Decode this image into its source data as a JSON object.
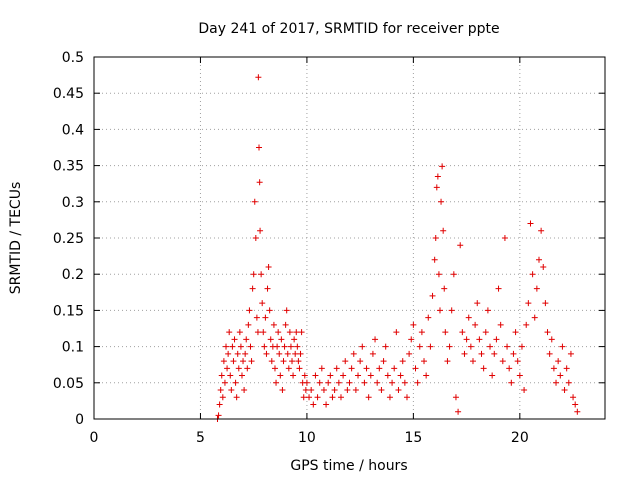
{
  "chart_data": {
    "type": "scatter",
    "title": "Day 241 of 2017, SRMTID for receiver ppte",
    "xlabel": "GPS time / hours",
    "ylabel": "SRMTID / TECUs",
    "xlim": [
      0,
      24
    ],
    "ylim": [
      0,
      0.5
    ],
    "xticks": [
      0,
      5,
      10,
      15,
      20
    ],
    "xtick_labels": [
      "0",
      "5",
      "10",
      "15",
      "20"
    ],
    "yticks": [
      0,
      0.05,
      0.1,
      0.15,
      0.2,
      0.25,
      0.3,
      0.35,
      0.4,
      0.45,
      0.5
    ],
    "ytick_labels": [
      "0",
      "0.05",
      "0.1",
      "0.15",
      "0.2",
      "0.25",
      "0.3",
      "0.35",
      "0.4",
      "0.45",
      "0.5"
    ],
    "grid": true,
    "marker": "+",
    "color": "#e00000",
    "series": [
      {
        "name": "SRMTID",
        "points": [
          [
            5.8,
            0.0
          ],
          [
            5.85,
            0.005
          ],
          [
            5.9,
            0.02
          ],
          [
            5.95,
            0.04
          ],
          [
            6.0,
            0.06
          ],
          [
            6.05,
            0.03
          ],
          [
            6.1,
            0.08
          ],
          [
            6.15,
            0.05
          ],
          [
            6.2,
            0.1
          ],
          [
            6.25,
            0.07
          ],
          [
            6.3,
            0.09
          ],
          [
            6.35,
            0.12
          ],
          [
            6.4,
            0.06
          ],
          [
            6.45,
            0.04
          ],
          [
            6.5,
            0.1
          ],
          [
            6.55,
            0.08
          ],
          [
            6.6,
            0.11
          ],
          [
            6.65,
            0.05
          ],
          [
            6.7,
            0.03
          ],
          [
            6.75,
            0.09
          ],
          [
            6.8,
            0.07
          ],
          [
            6.85,
            0.12
          ],
          [
            6.9,
            0.1
          ],
          [
            6.95,
            0.06
          ],
          [
            7.0,
            0.08
          ],
          [
            7.05,
            0.04
          ],
          [
            7.1,
            0.09
          ],
          [
            7.15,
            0.11
          ],
          [
            7.2,
            0.07
          ],
          [
            7.25,
            0.13
          ],
          [
            7.3,
            0.15
          ],
          [
            7.35,
            0.1
          ],
          [
            7.4,
            0.08
          ],
          [
            7.45,
            0.18
          ],
          [
            7.5,
            0.2
          ],
          [
            7.55,
            0.3
          ],
          [
            7.6,
            0.25
          ],
          [
            7.65,
            0.14
          ],
          [
            7.7,
            0.12
          ],
          [
            7.72,
            0.472
          ],
          [
            7.75,
            0.375
          ],
          [
            7.78,
            0.327
          ],
          [
            7.8,
            0.26
          ],
          [
            7.85,
            0.2
          ],
          [
            7.9,
            0.16
          ],
          [
            7.95,
            0.12
          ],
          [
            8.0,
            0.1
          ],
          [
            8.05,
            0.14
          ],
          [
            8.1,
            0.09
          ],
          [
            8.15,
            0.18
          ],
          [
            8.2,
            0.21
          ],
          [
            8.25,
            0.15
          ],
          [
            8.3,
            0.11
          ],
          [
            8.35,
            0.08
          ],
          [
            8.4,
            0.1
          ],
          [
            8.45,
            0.13
          ],
          [
            8.5,
            0.07
          ],
          [
            8.55,
            0.05
          ],
          [
            8.6,
            0.1
          ],
          [
            8.65,
            0.12
          ],
          [
            8.7,
            0.09
          ],
          [
            8.75,
            0.06
          ],
          [
            8.8,
            0.11
          ],
          [
            8.85,
            0.04
          ],
          [
            8.9,
            0.08
          ],
          [
            8.95,
            0.1
          ],
          [
            9.0,
            0.13
          ],
          [
            9.05,
            0.15
          ],
          [
            9.1,
            0.09
          ],
          [
            9.15,
            0.07
          ],
          [
            9.2,
            0.12
          ],
          [
            9.25,
            0.1
          ],
          [
            9.3,
            0.08
          ],
          [
            9.35,
            0.06
          ],
          [
            9.4,
            0.11
          ],
          [
            9.45,
            0.09
          ],
          [
            9.5,
            0.12
          ],
          [
            9.55,
            0.1
          ],
          [
            9.6,
            0.08
          ],
          [
            9.65,
            0.07
          ],
          [
            9.7,
            0.09
          ],
          [
            9.75,
            0.12
          ],
          [
            9.8,
            0.05
          ],
          [
            9.85,
            0.03
          ],
          [
            9.9,
            0.06
          ],
          [
            9.95,
            0.04
          ],
          [
            10.0,
            0.05
          ],
          [
            10.1,
            0.03
          ],
          [
            10.2,
            0.04
          ],
          [
            10.3,
            0.02
          ],
          [
            10.4,
            0.06
          ],
          [
            10.5,
            0.03
          ],
          [
            10.6,
            0.05
          ],
          [
            10.7,
            0.07
          ],
          [
            10.8,
            0.04
          ],
          [
            10.9,
            0.02
          ],
          [
            11.0,
            0.05
          ],
          [
            11.1,
            0.06
          ],
          [
            11.2,
            0.03
          ],
          [
            11.3,
            0.04
          ],
          [
            11.4,
            0.07
          ],
          [
            11.5,
            0.05
          ],
          [
            11.6,
            0.03
          ],
          [
            11.7,
            0.06
          ],
          [
            11.8,
            0.08
          ],
          [
            11.9,
            0.04
          ],
          [
            12.0,
            0.05
          ],
          [
            12.1,
            0.07
          ],
          [
            12.2,
            0.09
          ],
          [
            12.3,
            0.04
          ],
          [
            12.4,
            0.06
          ],
          [
            12.5,
            0.08
          ],
          [
            12.6,
            0.1
          ],
          [
            12.7,
            0.05
          ],
          [
            12.8,
            0.07
          ],
          [
            12.9,
            0.03
          ],
          [
            13.0,
            0.06
          ],
          [
            13.1,
            0.09
          ],
          [
            13.2,
            0.11
          ],
          [
            13.3,
            0.05
          ],
          [
            13.4,
            0.07
          ],
          [
            13.5,
            0.04
          ],
          [
            13.6,
            0.08
          ],
          [
            13.7,
            0.1
          ],
          [
            13.8,
            0.06
          ],
          [
            13.9,
            0.03
          ],
          [
            14.0,
            0.05
          ],
          [
            14.1,
            0.07
          ],
          [
            14.2,
            0.12
          ],
          [
            14.3,
            0.04
          ],
          [
            14.4,
            0.06
          ],
          [
            14.5,
            0.08
          ],
          [
            14.6,
            0.05
          ],
          [
            14.7,
            0.03
          ],
          [
            14.8,
            0.09
          ],
          [
            14.9,
            0.11
          ],
          [
            15.0,
            0.13
          ],
          [
            15.1,
            0.07
          ],
          [
            15.2,
            0.05
          ],
          [
            15.3,
            0.1
          ],
          [
            15.4,
            0.12
          ],
          [
            15.5,
            0.08
          ],
          [
            15.6,
            0.06
          ],
          [
            15.7,
            0.14
          ],
          [
            15.8,
            0.1
          ],
          [
            15.9,
            0.17
          ],
          [
            16.0,
            0.22
          ],
          [
            16.05,
            0.25
          ],
          [
            16.1,
            0.32
          ],
          [
            16.15,
            0.335
          ],
          [
            16.2,
            0.2
          ],
          [
            16.25,
            0.15
          ],
          [
            16.3,
            0.3
          ],
          [
            16.35,
            0.349
          ],
          [
            16.4,
            0.26
          ],
          [
            16.45,
            0.18
          ],
          [
            16.5,
            0.12
          ],
          [
            16.6,
            0.08
          ],
          [
            16.7,
            0.1
          ],
          [
            16.8,
            0.15
          ],
          [
            16.9,
            0.2
          ],
          [
            17.0,
            0.03
          ],
          [
            17.1,
            0.01
          ],
          [
            17.2,
            0.24
          ],
          [
            17.3,
            0.12
          ],
          [
            17.4,
            0.09
          ],
          [
            17.5,
            0.11
          ],
          [
            17.6,
            0.14
          ],
          [
            17.7,
            0.1
          ],
          [
            17.8,
            0.08
          ],
          [
            17.9,
            0.13
          ],
          [
            18.0,
            0.16
          ],
          [
            18.1,
            0.11
          ],
          [
            18.2,
            0.09
          ],
          [
            18.3,
            0.07
          ],
          [
            18.4,
            0.12
          ],
          [
            18.5,
            0.15
          ],
          [
            18.6,
            0.1
          ],
          [
            18.7,
            0.06
          ],
          [
            18.8,
            0.09
          ],
          [
            18.9,
            0.11
          ],
          [
            19.0,
            0.18
          ],
          [
            19.1,
            0.13
          ],
          [
            19.2,
            0.08
          ],
          [
            19.3,
            0.25
          ],
          [
            19.4,
            0.1
          ],
          [
            19.5,
            0.07
          ],
          [
            19.6,
            0.05
          ],
          [
            19.7,
            0.09
          ],
          [
            19.8,
            0.12
          ],
          [
            19.9,
            0.08
          ],
          [
            20.0,
            0.06
          ],
          [
            20.1,
            0.1
          ],
          [
            20.2,
            0.04
          ],
          [
            20.3,
            0.13
          ],
          [
            20.4,
            0.16
          ],
          [
            20.5,
            0.27
          ],
          [
            20.6,
            0.2
          ],
          [
            20.7,
            0.14
          ],
          [
            20.8,
            0.18
          ],
          [
            20.9,
            0.22
          ],
          [
            21.0,
            0.26
          ],
          [
            21.1,
            0.21
          ],
          [
            21.2,
            0.16
          ],
          [
            21.3,
            0.12
          ],
          [
            21.4,
            0.09
          ],
          [
            21.5,
            0.11
          ],
          [
            21.6,
            0.07
          ],
          [
            21.7,
            0.05
          ],
          [
            21.8,
            0.08
          ],
          [
            21.9,
            0.06
          ],
          [
            22.0,
            0.1
          ],
          [
            22.1,
            0.04
          ],
          [
            22.2,
            0.07
          ],
          [
            22.3,
            0.05
          ],
          [
            22.4,
            0.09
          ],
          [
            22.5,
            0.03
          ],
          [
            22.6,
            0.02
          ],
          [
            22.7,
            0.01
          ]
        ]
      }
    ]
  }
}
